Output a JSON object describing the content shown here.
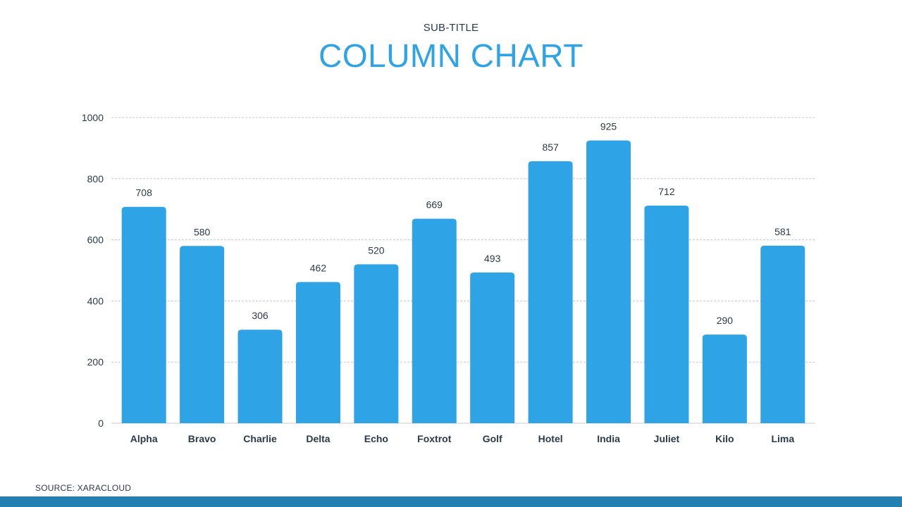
{
  "header": {
    "subtitle": "SUB-TITLE",
    "title": "COLUMN CHART"
  },
  "footer": {
    "source": "SOURCE: XARACLOUD"
  },
  "colors": {
    "bar": "#2ea3e6",
    "title": "#2ea3e6",
    "footer_bar": "#247fb3",
    "grid": "#c8c8c8",
    "text": "#2b3a4a"
  },
  "chart_data": {
    "type": "bar",
    "title": "COLUMN CHART",
    "subtitle": "SUB-TITLE",
    "xlabel": "",
    "ylabel": "",
    "categories": [
      "Alpha",
      "Bravo",
      "Charlie",
      "Delta",
      "Echo",
      "Foxtrot",
      "Golf",
      "Hotel",
      "India",
      "Juliet",
      "Kilo",
      "Lima"
    ],
    "values": [
      708,
      580,
      306,
      462,
      520,
      669,
      493,
      857,
      925,
      712,
      290,
      581
    ],
    "ylim": [
      0,
      1000
    ],
    "yticks": [
      0,
      200,
      400,
      600,
      800,
      1000
    ],
    "grid": true,
    "data_labels": true,
    "legend": "none"
  }
}
